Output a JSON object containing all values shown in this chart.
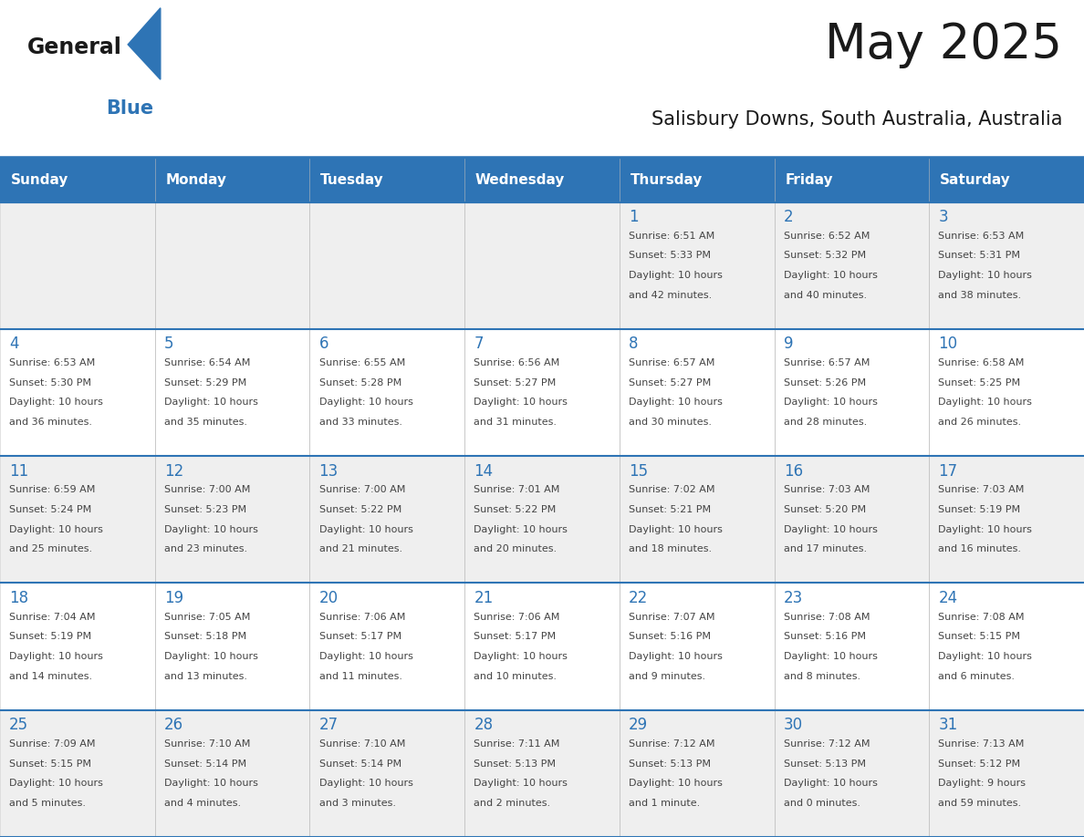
{
  "title": "May 2025",
  "subtitle": "Salisbury Downs, South Australia, Australia",
  "days_of_week": [
    "Sunday",
    "Monday",
    "Tuesday",
    "Wednesday",
    "Thursday",
    "Friday",
    "Saturday"
  ],
  "header_bg": "#2E74B5",
  "header_text_color": "#FFFFFF",
  "cell_bg_white": "#FFFFFF",
  "cell_bg_gray": "#EFEFEF",
  "border_color": "#2E74B5",
  "day_number_color": "#2E74B5",
  "info_text_color": "#444444",
  "title_color": "#1a1a1a",
  "subtitle_color": "#1a1a1a",
  "logo_general_color": "#1a1a1a",
  "logo_blue_color": "#2E74B5",
  "logo_triangle_color": "#2E74B5",
  "calendar_row_bg": [
    "#EFEFEF",
    "#FFFFFF",
    "#EFEFEF",
    "#FFFFFF",
    "#EFEFEF"
  ],
  "calendar": [
    [
      {
        "day": null,
        "info": ""
      },
      {
        "day": null,
        "info": ""
      },
      {
        "day": null,
        "info": ""
      },
      {
        "day": null,
        "info": ""
      },
      {
        "day": 1,
        "info": "Sunrise: 6:51 AM\nSunset: 5:33 PM\nDaylight: 10 hours\nand 42 minutes."
      },
      {
        "day": 2,
        "info": "Sunrise: 6:52 AM\nSunset: 5:32 PM\nDaylight: 10 hours\nand 40 minutes."
      },
      {
        "day": 3,
        "info": "Sunrise: 6:53 AM\nSunset: 5:31 PM\nDaylight: 10 hours\nand 38 minutes."
      }
    ],
    [
      {
        "day": 4,
        "info": "Sunrise: 6:53 AM\nSunset: 5:30 PM\nDaylight: 10 hours\nand 36 minutes."
      },
      {
        "day": 5,
        "info": "Sunrise: 6:54 AM\nSunset: 5:29 PM\nDaylight: 10 hours\nand 35 minutes."
      },
      {
        "day": 6,
        "info": "Sunrise: 6:55 AM\nSunset: 5:28 PM\nDaylight: 10 hours\nand 33 minutes."
      },
      {
        "day": 7,
        "info": "Sunrise: 6:56 AM\nSunset: 5:27 PM\nDaylight: 10 hours\nand 31 minutes."
      },
      {
        "day": 8,
        "info": "Sunrise: 6:57 AM\nSunset: 5:27 PM\nDaylight: 10 hours\nand 30 minutes."
      },
      {
        "day": 9,
        "info": "Sunrise: 6:57 AM\nSunset: 5:26 PM\nDaylight: 10 hours\nand 28 minutes."
      },
      {
        "day": 10,
        "info": "Sunrise: 6:58 AM\nSunset: 5:25 PM\nDaylight: 10 hours\nand 26 minutes."
      }
    ],
    [
      {
        "day": 11,
        "info": "Sunrise: 6:59 AM\nSunset: 5:24 PM\nDaylight: 10 hours\nand 25 minutes."
      },
      {
        "day": 12,
        "info": "Sunrise: 7:00 AM\nSunset: 5:23 PM\nDaylight: 10 hours\nand 23 minutes."
      },
      {
        "day": 13,
        "info": "Sunrise: 7:00 AM\nSunset: 5:22 PM\nDaylight: 10 hours\nand 21 minutes."
      },
      {
        "day": 14,
        "info": "Sunrise: 7:01 AM\nSunset: 5:22 PM\nDaylight: 10 hours\nand 20 minutes."
      },
      {
        "day": 15,
        "info": "Sunrise: 7:02 AM\nSunset: 5:21 PM\nDaylight: 10 hours\nand 18 minutes."
      },
      {
        "day": 16,
        "info": "Sunrise: 7:03 AM\nSunset: 5:20 PM\nDaylight: 10 hours\nand 17 minutes."
      },
      {
        "day": 17,
        "info": "Sunrise: 7:03 AM\nSunset: 5:19 PM\nDaylight: 10 hours\nand 16 minutes."
      }
    ],
    [
      {
        "day": 18,
        "info": "Sunrise: 7:04 AM\nSunset: 5:19 PM\nDaylight: 10 hours\nand 14 minutes."
      },
      {
        "day": 19,
        "info": "Sunrise: 7:05 AM\nSunset: 5:18 PM\nDaylight: 10 hours\nand 13 minutes."
      },
      {
        "day": 20,
        "info": "Sunrise: 7:06 AM\nSunset: 5:17 PM\nDaylight: 10 hours\nand 11 minutes."
      },
      {
        "day": 21,
        "info": "Sunrise: 7:06 AM\nSunset: 5:17 PM\nDaylight: 10 hours\nand 10 minutes."
      },
      {
        "day": 22,
        "info": "Sunrise: 7:07 AM\nSunset: 5:16 PM\nDaylight: 10 hours\nand 9 minutes."
      },
      {
        "day": 23,
        "info": "Sunrise: 7:08 AM\nSunset: 5:16 PM\nDaylight: 10 hours\nand 8 minutes."
      },
      {
        "day": 24,
        "info": "Sunrise: 7:08 AM\nSunset: 5:15 PM\nDaylight: 10 hours\nand 6 minutes."
      }
    ],
    [
      {
        "day": 25,
        "info": "Sunrise: 7:09 AM\nSunset: 5:15 PM\nDaylight: 10 hours\nand 5 minutes."
      },
      {
        "day": 26,
        "info": "Sunrise: 7:10 AM\nSunset: 5:14 PM\nDaylight: 10 hours\nand 4 minutes."
      },
      {
        "day": 27,
        "info": "Sunrise: 7:10 AM\nSunset: 5:14 PM\nDaylight: 10 hours\nand 3 minutes."
      },
      {
        "day": 28,
        "info": "Sunrise: 7:11 AM\nSunset: 5:13 PM\nDaylight: 10 hours\nand 2 minutes."
      },
      {
        "day": 29,
        "info": "Sunrise: 7:12 AM\nSunset: 5:13 PM\nDaylight: 10 hours\nand 1 minute."
      },
      {
        "day": 30,
        "info": "Sunrise: 7:12 AM\nSunset: 5:13 PM\nDaylight: 10 hours\nand 0 minutes."
      },
      {
        "day": 31,
        "info": "Sunrise: 7:13 AM\nSunset: 5:12 PM\nDaylight: 9 hours\nand 59 minutes."
      }
    ]
  ]
}
